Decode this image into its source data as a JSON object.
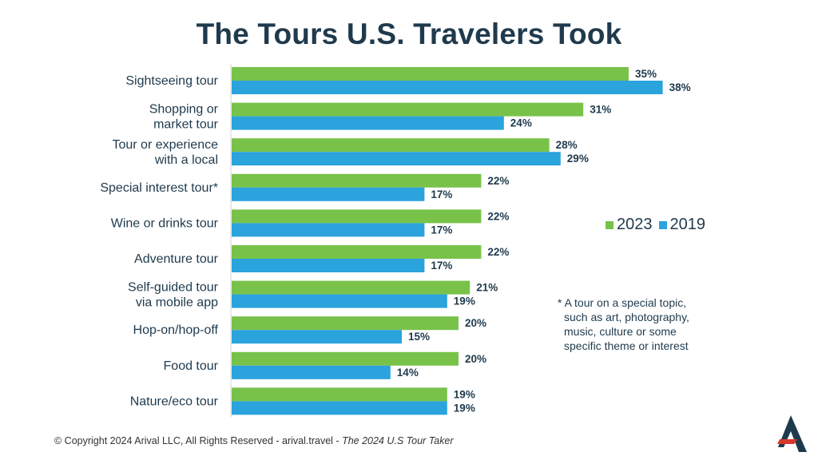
{
  "colors": {
    "series_2023": "#78c24a",
    "series_2019": "#2ba3dc",
    "text": "#1f3a4d",
    "logo_dark": "#1f3a4d",
    "logo_red": "#d9372b"
  },
  "chart_data": {
    "type": "bar",
    "orientation": "horizontal",
    "title": "The Tours U.S. Travelers Took",
    "categories": [
      "Sightseeing tour",
      "Shopping or\nmarket tour",
      "Tour or experience\nwith a local",
      "Special interest tour*",
      "Wine or drinks tour",
      "Adventure tour",
      "Self-guided tour\nvia mobile app",
      "Hop-on/hop-off",
      "Food tour",
      "Nature/eco tour"
    ],
    "series": [
      {
        "name": "2023",
        "values": [
          35,
          31,
          28,
          22,
          22,
          22,
          21,
          20,
          20,
          19
        ]
      },
      {
        "name": "2019",
        "values": [
          38,
          24,
          29,
          17,
          17,
          17,
          19,
          15,
          14,
          19
        ]
      }
    ],
    "value_suffix": "%",
    "legend_position": "right",
    "grid": false
  },
  "legend": {
    "label_2023": "2023",
    "label_2019": "2019"
  },
  "footnote": {
    "line1": "* A tour on a special topic,",
    "line2": "such as art, photography,",
    "line3": "music, culture or some",
    "line4": "specific theme or interest"
  },
  "footer": {
    "copyright": "© Copyright 2024 Arival LLC, All Rights Reserved - arival.travel - ",
    "publication": "The 2024 U.S Tour Taker"
  },
  "logo": {
    "name": "arival-logo"
  }
}
